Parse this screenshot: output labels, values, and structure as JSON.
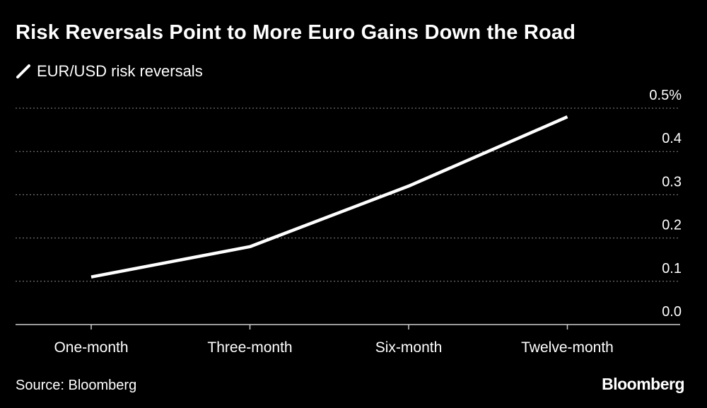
{
  "chart_data": {
    "type": "line",
    "title": "Risk Reversals Point to More Euro Gains Down the Road",
    "categories": [
      "One-month",
      "Three-month",
      "Six-month",
      "Twelve-month"
    ],
    "series": [
      {
        "name": "EUR/USD risk reversals",
        "values": [
          0.11,
          0.18,
          0.32,
          0.48
        ]
      }
    ],
    "ylim": [
      0,
      0.5
    ],
    "yticks": [
      "0.0",
      "0.1",
      "0.2",
      "0.3",
      "0.4",
      "0.5%"
    ],
    "xlabel": "",
    "ylabel": "",
    "grid": true,
    "legend": "top-left"
  },
  "footer": {
    "source": "Source: Bloomberg",
    "brand": "Bloomberg"
  },
  "colors": {
    "background": "#000000",
    "line": "#ffffff",
    "grid": "#8a8a8a",
    "text": "#ffffff"
  }
}
